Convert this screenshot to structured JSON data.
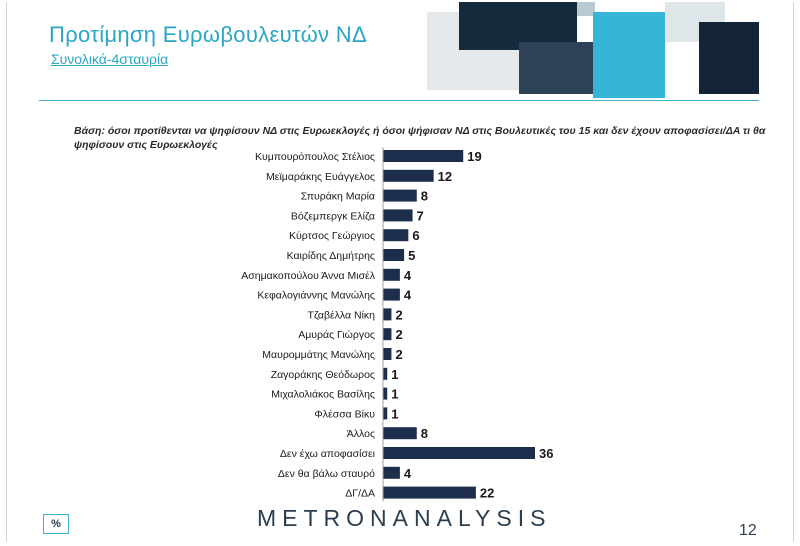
{
  "header": {
    "title": "Προτίμηση Ευρωβουλευτών ΝΔ",
    "subtitle": "Συνολικά-4σταυρία"
  },
  "base_note": "Βάση: όσοι προτίθενται να ψηφίσουν ΝΔ στις Ευρωεκλογές ή όσοι ψήφισαν ΝΔ στις Βουλευτικές του 15 και δεν έχουν αποφασίσει/ΔΑ τι θα ψηφίσουν στις Ευρωεκλογές",
  "chart_data": {
    "type": "bar",
    "orientation": "horizontal",
    "categories": [
      "Κυμπουρόπουλος Στέλιος",
      "Μεϊμαράκης Ευάγγελος",
      "Σπυράκη Μαρία",
      "Βόζεμπεργκ Ελίζα",
      "Κύρτσος Γεώργιος",
      "Καιρίδης Δημήτρης",
      "Ασημακοπούλου Άννα Μισέλ",
      "Κεφαλογιάννης Μανώλης",
      "Τζαβέλλα Νίκη",
      "Αμυράς Γιώργος",
      "Μαυρομμάτης Μανώλης",
      "Ζαγοράκης Θεόδωρος",
      "Μιχαλολιάκος Βασίλης",
      "Φλέσσα Βίκυ",
      "Άλλος",
      "Δεν έχω αποφασίσει",
      "Δεν θα βάλω σταυρό",
      "ΔΓ/ΔΑ"
    ],
    "values": [
      19,
      12,
      8,
      7,
      6,
      5,
      4,
      4,
      2,
      2,
      2,
      1,
      1,
      1,
      8,
      36,
      4,
      22
    ],
    "bar_color": "#1d2e4c",
    "data_labels": true,
    "xlim": [
      0,
      36
    ]
  },
  "footer": {
    "logo": "METRONANALYSIS",
    "unit_badge": "%",
    "page_number": "12"
  },
  "colors": {
    "accent": "#2aa6c4",
    "bar": "#1d2e4c"
  }
}
